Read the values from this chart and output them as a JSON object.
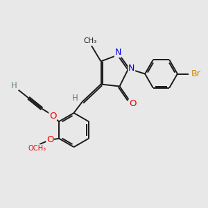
{
  "bg_color": "#e8e8e8",
  "atom_colors": {
    "C": "#1a1a1a",
    "H": "#5f8080",
    "N": "#0000ee",
    "O": "#ee0000",
    "Br": "#cc8800"
  },
  "bond_color": "#1a1a1a",
  "bond_width": 1.4,
  "figsize": [
    3.0,
    3.0
  ],
  "dpi": 100
}
